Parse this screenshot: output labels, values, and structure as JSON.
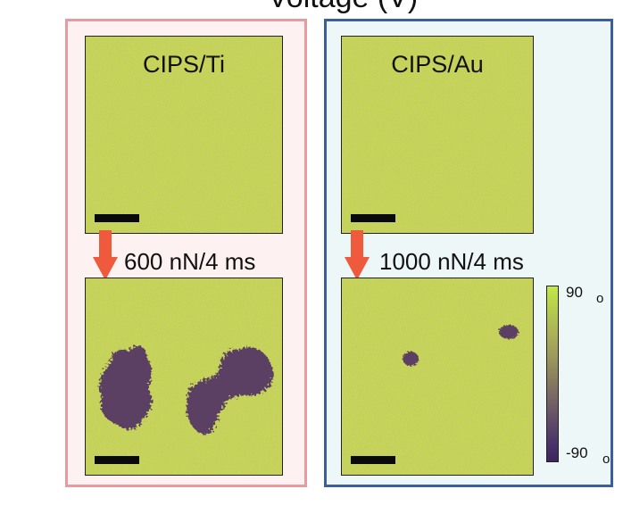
{
  "header": {
    "title": "Voltage (V)"
  },
  "panels": {
    "ti": {
      "before_label": "CIPS/Ti",
      "condition": "600 nN/4 ms"
    },
    "au": {
      "before_label": "CIPS/Au",
      "condition": "1000 nN/4 ms"
    }
  },
  "colorbar": {
    "max_label": "90",
    "min_label": "-90",
    "unit": "o"
  },
  "colors": {
    "ti_border": "#e89aa0",
    "au_border": "#3a5f9a",
    "arrow": "#f05a3c",
    "up_domain": "#c2d34a",
    "down_domain": "#5c3f64"
  }
}
